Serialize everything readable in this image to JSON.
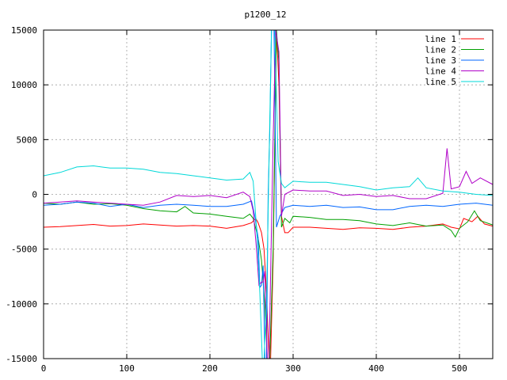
{
  "chart_data": {
    "type": "line",
    "title": "p1200_12",
    "xlabel": "",
    "ylabel": "",
    "xlim": [
      0,
      540
    ],
    "ylim": [
      -15000,
      15000
    ],
    "xticks": [
      0,
      100,
      200,
      300,
      400,
      500
    ],
    "yticks": [
      -15000,
      -10000,
      -5000,
      0,
      5000,
      10000,
      15000
    ],
    "grid": true,
    "legend_position": "top-right",
    "series": [
      {
        "name": "line 1",
        "color": "#ff0000",
        "points": [
          [
            0,
            -3000
          ],
          [
            20,
            -2950
          ],
          [
            40,
            -2850
          ],
          [
            60,
            -2750
          ],
          [
            80,
            -2900
          ],
          [
            100,
            -2850
          ],
          [
            120,
            -2700
          ],
          [
            140,
            -2800
          ],
          [
            160,
            -2900
          ],
          [
            180,
            -2850
          ],
          [
            200,
            -2900
          ],
          [
            220,
            -3100
          ],
          [
            240,
            -2850
          ],
          [
            250,
            -2600
          ],
          [
            255,
            -2200
          ],
          [
            258,
            -2600
          ],
          [
            262,
            -3500
          ],
          [
            265,
            -5000
          ],
          [
            268,
            -9000
          ],
          [
            271,
            -15000
          ],
          [
            273,
            -15000
          ],
          [
            276,
            -6000
          ],
          [
            280,
            15000
          ],
          [
            283,
            10000
          ],
          [
            286,
            -2000
          ],
          [
            290,
            -3500
          ],
          [
            294,
            -3500
          ],
          [
            300,
            -3000
          ],
          [
            320,
            -3000
          ],
          [
            340,
            -3100
          ],
          [
            360,
            -3200
          ],
          [
            380,
            -3050
          ],
          [
            400,
            -3100
          ],
          [
            420,
            -3200
          ],
          [
            440,
            -3000
          ],
          [
            460,
            -2900
          ],
          [
            480,
            -2700
          ],
          [
            490,
            -3000
          ],
          [
            500,
            -3150
          ],
          [
            505,
            -2200
          ],
          [
            515,
            -2500
          ],
          [
            522,
            -2000
          ],
          [
            530,
            -2700
          ],
          [
            540,
            -2900
          ]
        ]
      },
      {
        "name": "line 2",
        "color": "#00a000",
        "points": [
          [
            0,
            -800
          ],
          [
            20,
            -900
          ],
          [
            40,
            -700
          ],
          [
            60,
            -900
          ],
          [
            80,
            -850
          ],
          [
            100,
            -1000
          ],
          [
            120,
            -1300
          ],
          [
            140,
            -1500
          ],
          [
            160,
            -1600
          ],
          [
            170,
            -1100
          ],
          [
            180,
            -1700
          ],
          [
            200,
            -1800
          ],
          [
            220,
            -2000
          ],
          [
            240,
            -2200
          ],
          [
            248,
            -1800
          ],
          [
            252,
            -2200
          ],
          [
            258,
            -4000
          ],
          [
            262,
            -6000
          ],
          [
            266,
            -10000
          ],
          [
            269,
            -15000
          ],
          [
            272,
            -15000
          ],
          [
            276,
            -5000
          ],
          [
            280,
            15000
          ],
          [
            283,
            12000
          ],
          [
            286,
            -3000
          ],
          [
            290,
            -2200
          ],
          [
            296,
            -2600
          ],
          [
            300,
            -2000
          ],
          [
            320,
            -2100
          ],
          [
            340,
            -2300
          ],
          [
            360,
            -2300
          ],
          [
            380,
            -2400
          ],
          [
            400,
            -2700
          ],
          [
            420,
            -2850
          ],
          [
            440,
            -2600
          ],
          [
            460,
            -2900
          ],
          [
            480,
            -2800
          ],
          [
            490,
            -3300
          ],
          [
            495,
            -3900
          ],
          [
            500,
            -3100
          ],
          [
            510,
            -2500
          ],
          [
            518,
            -1500
          ],
          [
            525,
            -2400
          ],
          [
            540,
            -2800
          ]
        ]
      },
      {
        "name": "line 3",
        "color": "#0066ff",
        "points": [
          [
            0,
            -1000
          ],
          [
            20,
            -900
          ],
          [
            40,
            -700
          ],
          [
            60,
            -800
          ],
          [
            80,
            -1100
          ],
          [
            100,
            -900
          ],
          [
            120,
            -1200
          ],
          [
            140,
            -1000
          ],
          [
            160,
            -900
          ],
          [
            180,
            -1000
          ],
          [
            200,
            -1100
          ],
          [
            220,
            -1100
          ],
          [
            240,
            -900
          ],
          [
            250,
            -600
          ],
          [
            254,
            -2000
          ],
          [
            258,
            -4000
          ],
          [
            260,
            -8500
          ],
          [
            262,
            -8300
          ],
          [
            264,
            -6500
          ],
          [
            266,
            -15000
          ],
          [
            268,
            -15000
          ],
          [
            270,
            0
          ],
          [
            272,
            6000
          ],
          [
            274,
            15000
          ],
          [
            277,
            15000
          ],
          [
            280,
            -3000
          ],
          [
            284,
            -2000
          ],
          [
            290,
            -1200
          ],
          [
            300,
            -1000
          ],
          [
            320,
            -1100
          ],
          [
            340,
            -1000
          ],
          [
            360,
            -1200
          ],
          [
            380,
            -1150
          ],
          [
            400,
            -1400
          ],
          [
            420,
            -1400
          ],
          [
            440,
            -1100
          ],
          [
            460,
            -1000
          ],
          [
            480,
            -1100
          ],
          [
            500,
            -900
          ],
          [
            520,
            -800
          ],
          [
            540,
            -1000
          ]
        ]
      },
      {
        "name": "line 4",
        "color": "#b000c8",
        "points": [
          [
            0,
            -800
          ],
          [
            20,
            -700
          ],
          [
            40,
            -600
          ],
          [
            60,
            -700
          ],
          [
            80,
            -800
          ],
          [
            100,
            -900
          ],
          [
            120,
            -1000
          ],
          [
            140,
            -700
          ],
          [
            160,
            -100
          ],
          [
            180,
            -200
          ],
          [
            200,
            -100
          ],
          [
            220,
            -300
          ],
          [
            240,
            200
          ],
          [
            248,
            -200
          ],
          [
            252,
            -1500
          ],
          [
            256,
            -5000
          ],
          [
            259,
            -8300
          ],
          [
            262,
            -8000
          ],
          [
            264,
            -8000
          ],
          [
            266,
            -7000
          ],
          [
            269,
            -15000
          ],
          [
            271,
            -15000
          ],
          [
            276,
            5000
          ],
          [
            279,
            15000
          ],
          [
            283,
            13000
          ],
          [
            286,
            -2000
          ],
          [
            290,
            0
          ],
          [
            300,
            400
          ],
          [
            320,
            300
          ],
          [
            340,
            300
          ],
          [
            360,
            -100
          ],
          [
            380,
            0
          ],
          [
            400,
            -200
          ],
          [
            420,
            -100
          ],
          [
            440,
            -400
          ],
          [
            460,
            -400
          ],
          [
            480,
            100
          ],
          [
            485,
            4200
          ],
          [
            490,
            500
          ],
          [
            500,
            700
          ],
          [
            508,
            2100
          ],
          [
            515,
            1000
          ],
          [
            525,
            1500
          ],
          [
            540,
            900
          ]
        ]
      },
      {
        "name": "line 5",
        "color": "#00d8d8",
        "points": [
          [
            0,
            1700
          ],
          [
            20,
            2000
          ],
          [
            40,
            2500
          ],
          [
            60,
            2600
          ],
          [
            80,
            2400
          ],
          [
            100,
            2400
          ],
          [
            120,
            2300
          ],
          [
            140,
            2000
          ],
          [
            160,
            1900
          ],
          [
            180,
            1700
          ],
          [
            200,
            1500
          ],
          [
            220,
            1300
          ],
          [
            240,
            1400
          ],
          [
            248,
            2000
          ],
          [
            252,
            1200
          ],
          [
            256,
            -3000
          ],
          [
            260,
            -9000
          ],
          [
            263,
            -15000
          ],
          [
            265,
            -15000
          ],
          [
            268,
            -10000
          ],
          [
            271,
            3000
          ],
          [
            274,
            15000
          ],
          [
            278,
            15000
          ],
          [
            282,
            3000
          ],
          [
            286,
            1000
          ],
          [
            290,
            600
          ],
          [
            300,
            1200
          ],
          [
            320,
            1100
          ],
          [
            340,
            1100
          ],
          [
            360,
            900
          ],
          [
            380,
            700
          ],
          [
            400,
            400
          ],
          [
            420,
            600
          ],
          [
            440,
            700
          ],
          [
            450,
            1500
          ],
          [
            460,
            600
          ],
          [
            480,
            300
          ],
          [
            500,
            200
          ],
          [
            520,
            0
          ],
          [
            540,
            -100
          ]
        ]
      }
    ]
  }
}
